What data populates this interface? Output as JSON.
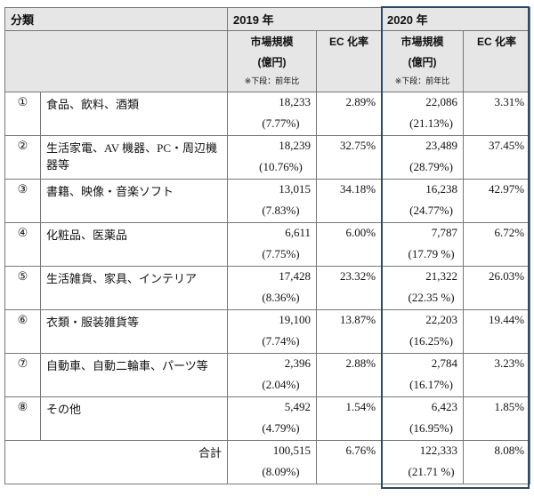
{
  "header": {
    "category": "分類",
    "year1": "2019 年",
    "year2": "2020 年",
    "market_size": "市場規模",
    "unit": "(億円)",
    "note": "※下段：前年比",
    "ec_rate": "EC 化率"
  },
  "rows": [
    {
      "no": "①",
      "category": "食品、飲料、酒類",
      "size1": "18,233",
      "yoy1": "(7.77%)",
      "ec1": "2.89%",
      "size2": "22,086",
      "yoy2": "(21.13%)",
      "ec2": "3.31%"
    },
    {
      "no": "②",
      "category": "生活家電、AV 機器、PC・周辺機器等",
      "size1": "18,239",
      "yoy1": "(10.76%)",
      "ec1": "32.75%",
      "size2": "23,489",
      "yoy2": "(28.79%)",
      "ec2": "37.45%"
    },
    {
      "no": "③",
      "category": "書籍、映像・音楽ソフト",
      "size1": "13,015",
      "yoy1": "(7.83%)",
      "ec1": "34.18%",
      "size2": "16,238",
      "yoy2": "(24.77%)",
      "ec2": "42.97%"
    },
    {
      "no": "④",
      "category": "化粧品、医薬品",
      "size1": "6,611",
      "yoy1": "(7.75%)",
      "ec1": "6.00%",
      "size2": "7,787",
      "yoy2": "(17.79 %)",
      "ec2": "6.72%"
    },
    {
      "no": "⑤",
      "category": "生活雑貨、家具、インテリア",
      "size1": "17,428",
      "yoy1": "(8.36%)",
      "ec1": "23.32%",
      "size2": "21,322",
      "yoy2": "(22.35 %)",
      "ec2": "26.03%"
    },
    {
      "no": "⑥",
      "category": "衣類・服装雑貨等",
      "size1": "19,100",
      "yoy1": "(7.74%)",
      "ec1": "13.87%",
      "size2": "22,203",
      "yoy2": "(16.25%)",
      "ec2": "19.44%"
    },
    {
      "no": "⑦",
      "category": "自動車、自動二輪車、パーツ等",
      "size1": "2,396",
      "yoy1": "(2.04%)",
      "ec1": "2.88%",
      "size2": "2,784",
      "yoy2": "(16.17%)",
      "ec2": "3.23%"
    },
    {
      "no": "⑧",
      "category": "その他",
      "size1": "5,492",
      "yoy1": "(4.79%)",
      "ec1": "1.54%",
      "size2": "6,423",
      "yoy2": "(16.95%)",
      "ec2": "1.85%"
    }
  ],
  "total": {
    "label": "合計",
    "size1": "100,515",
    "yoy1": "(8.09%)",
    "ec1": "6.76%",
    "size2": "122,333",
    "yoy2": "(21.71 %)",
    "ec2": "8.08%"
  }
}
